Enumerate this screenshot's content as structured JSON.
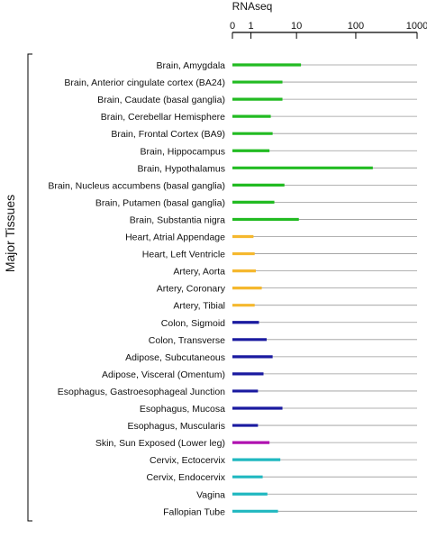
{
  "chart_data": {
    "type": "bar",
    "orientation": "horizontal",
    "title": "",
    "xlabel": "RNAseq",
    "ylabel": "Major Tissues",
    "x_scale": "log1p",
    "xlim": [
      0,
      1000
    ],
    "x_ticks": [
      "0",
      "1",
      "10",
      "100",
      "1000"
    ],
    "x_tick_values": [
      0,
      1,
      10,
      100,
      1000
    ],
    "grid": true,
    "categories": [
      "Brain, Amygdala",
      "Brain, Anterior cingulate cortex (BA24)",
      "Brain, Caudate (basal ganglia)",
      "Brain, Cerebellar Hemisphere",
      "Brain, Frontal Cortex (BA9)",
      "Brain, Hippocampus",
      "Brain, Hypothalamus",
      "Brain, Nucleus accumbens (basal ganglia)",
      "Brain, Putamen (basal ganglia)",
      "Brain, Substantia nigra",
      "Heart, Atrial Appendage",
      "Heart, Left Ventricle",
      "Artery, Aorta",
      "Artery, Coronary",
      "Artery, Tibial",
      "Colon, Sigmoid",
      "Colon, Transverse",
      "Adipose, Subcutaneous",
      "Adipose, Visceral (Omentum)",
      "Esophagus, Gastroesophageal Junction",
      "Esophagus, Mucosa",
      "Esophagus, Muscularis",
      "Skin, Sun Exposed (Lower leg)",
      "Cervix, Ectocervix",
      "Cervix, Endocervix",
      "Vagina",
      "Fallopian Tube"
    ],
    "values": [
      12,
      5.5,
      5.5,
      3.2,
      3.5,
      3.0,
      190,
      6.0,
      3.8,
      11,
      1.2,
      1.3,
      1.4,
      2.0,
      1.3,
      1.7,
      2.6,
      3.5,
      2.2,
      1.6,
      5.5,
      1.6,
      3.0,
      5.0,
      2.1,
      2.7,
      4.5
    ],
    "colors": [
      "#22bb22",
      "#22bb22",
      "#22bb22",
      "#22bb22",
      "#22bb22",
      "#22bb22",
      "#22bb22",
      "#22bb22",
      "#22bb22",
      "#22bb22",
      "#f5b82e",
      "#f5b82e",
      "#f5b82e",
      "#f5b82e",
      "#f5b82e",
      "#1a1aa0",
      "#1a1aa0",
      "#1a1aa0",
      "#1a1aa0",
      "#1a1aa0",
      "#1a1aa0",
      "#1a1aa0",
      "#b012b0",
      "#20b8c0",
      "#20b8c0",
      "#20b8c0",
      "#20b8c0"
    ]
  }
}
